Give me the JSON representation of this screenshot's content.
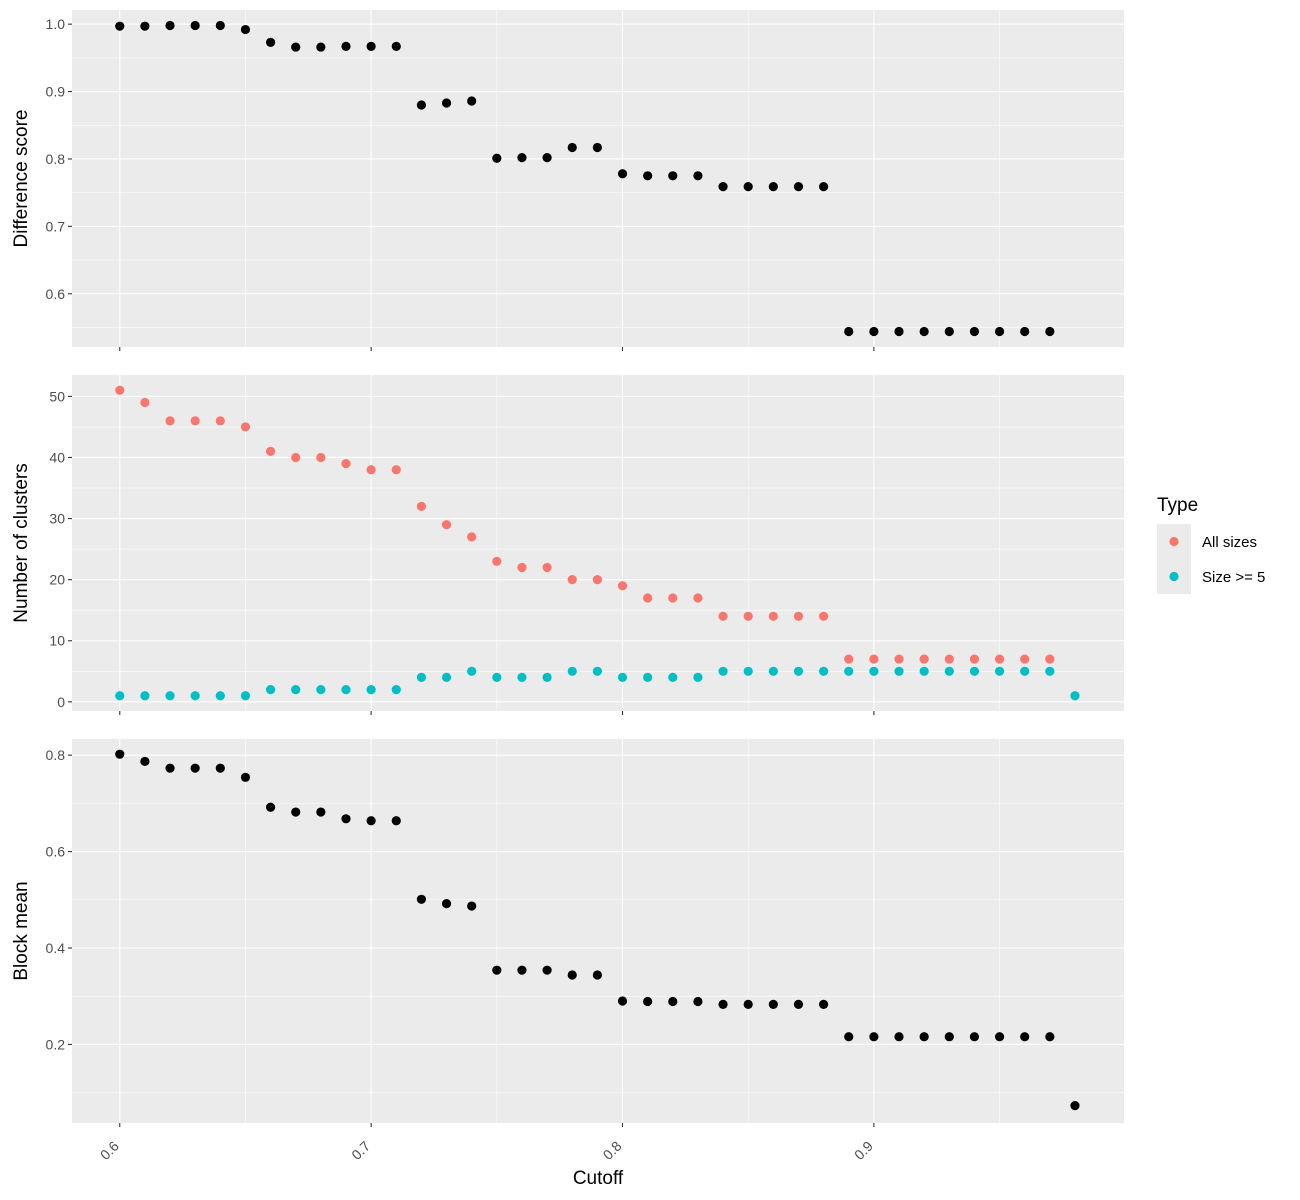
{
  "colors": {
    "panel_bg": "#EBEBEB",
    "grid": "#FFFFFF",
    "point_default": "#000000",
    "all_sizes": "#F8766D",
    "size_ge5": "#00BFC4",
    "tick_text": "#4D4D4D",
    "axis_title": "#000000"
  },
  "chart_data": [
    {
      "type": "scatter",
      "panel": "top",
      "ylabel": "Difference score",
      "xlabel": "",
      "xlim": [
        0.581,
        0.9995
      ],
      "ylim": [
        0.521,
        1.021
      ],
      "yticks": [
        0.6,
        0.7,
        0.8,
        0.9,
        1.0
      ],
      "ytick_labels": [
        "0.6",
        "0.7",
        "0.8",
        "0.9",
        "1.0"
      ],
      "xticks": [
        0.6,
        0.7,
        0.8,
        0.9
      ],
      "show_x_tick_labels": false,
      "grid": true,
      "series": [
        {
          "color_key": "point_default",
          "x": [
            0.6,
            0.61,
            0.62,
            0.63,
            0.64,
            0.65,
            0.66,
            0.67,
            0.68,
            0.69,
            0.7,
            0.71,
            0.72,
            0.73,
            0.74,
            0.75,
            0.76,
            0.77,
            0.78,
            0.79,
            0.8,
            0.81,
            0.82,
            0.83,
            0.84,
            0.85,
            0.86,
            0.87,
            0.88,
            0.89,
            0.9,
            0.91,
            0.92,
            0.93,
            0.94,
            0.95,
            0.96,
            0.97
          ],
          "y": [
            0.997,
            0.997,
            0.998,
            0.998,
            0.998,
            0.992,
            0.973,
            0.966,
            0.966,
            0.967,
            0.967,
            0.967,
            0.88,
            0.883,
            0.886,
            0.801,
            0.802,
            0.802,
            0.817,
            0.817,
            0.778,
            0.775,
            0.775,
            0.775,
            0.759,
            0.759,
            0.759,
            0.759,
            0.759,
            0.544,
            0.544,
            0.544,
            0.544,
            0.544,
            0.544,
            0.544,
            0.544,
            0.544
          ]
        }
      ]
    },
    {
      "type": "scatter",
      "panel": "middle",
      "ylabel": "Number of clusters",
      "xlabel": "",
      "xlim": [
        0.581,
        0.9995
      ],
      "ylim": [
        -1.5,
        53.5
      ],
      "yticks": [
        0,
        10,
        20,
        30,
        40,
        50
      ],
      "ytick_labels": [
        "0",
        "10",
        "20",
        "30",
        "40",
        "50"
      ],
      "xticks": [
        0.6,
        0.7,
        0.8,
        0.9
      ],
      "show_x_tick_labels": false,
      "grid": true,
      "legend": {
        "title": "Type",
        "position": "right",
        "entries": [
          {
            "label": "All sizes",
            "color_key": "all_sizes"
          },
          {
            "label": "Size >= 5",
            "color_key": "size_ge5"
          }
        ]
      },
      "series": [
        {
          "name": "All sizes",
          "color_key": "all_sizes",
          "x": [
            0.6,
            0.61,
            0.62,
            0.63,
            0.64,
            0.65,
            0.66,
            0.67,
            0.68,
            0.69,
            0.7,
            0.71,
            0.72,
            0.73,
            0.74,
            0.75,
            0.76,
            0.77,
            0.78,
            0.79,
            0.8,
            0.81,
            0.82,
            0.83,
            0.84,
            0.85,
            0.86,
            0.87,
            0.88,
            0.89,
            0.9,
            0.91,
            0.92,
            0.93,
            0.94,
            0.95,
            0.96,
            0.97
          ],
          "y": [
            51,
            49,
            46,
            46,
            46,
            45,
            41,
            40,
            40,
            39,
            38,
            38,
            32,
            29,
            27,
            23,
            22,
            22,
            20,
            20,
            19,
            17,
            17,
            17,
            14,
            14,
            14,
            14,
            14,
            7,
            7,
            7,
            7,
            7,
            7,
            7,
            7,
            7
          ]
        },
        {
          "name": "Size >= 5",
          "color_key": "size_ge5",
          "x": [
            0.6,
            0.61,
            0.62,
            0.63,
            0.64,
            0.65,
            0.66,
            0.67,
            0.68,
            0.69,
            0.7,
            0.71,
            0.72,
            0.73,
            0.74,
            0.75,
            0.76,
            0.77,
            0.78,
            0.79,
            0.8,
            0.81,
            0.82,
            0.83,
            0.84,
            0.85,
            0.86,
            0.87,
            0.88,
            0.89,
            0.9,
            0.91,
            0.92,
            0.93,
            0.94,
            0.95,
            0.96,
            0.97,
            0.98
          ],
          "y": [
            1,
            1,
            1,
            1,
            1,
            1,
            2,
            2,
            2,
            2,
            2,
            2,
            4,
            4,
            5,
            4,
            4,
            4,
            5,
            5,
            4,
            4,
            4,
            4,
            5,
            5,
            5,
            5,
            5,
            5,
            5,
            5,
            5,
            5,
            5,
            5,
            5,
            5,
            1
          ]
        }
      ]
    },
    {
      "type": "scatter",
      "panel": "bottom",
      "ylabel": "Block mean",
      "xlabel": "Cutoff",
      "xlim": [
        0.581,
        0.9995
      ],
      "ylim": [
        0.037,
        0.8335
      ],
      "yticks": [
        0.2,
        0.4,
        0.6,
        0.8
      ],
      "ytick_labels": [
        "0.2",
        "0.4",
        "0.6",
        "0.8"
      ],
      "xticks": [
        0.6,
        0.7,
        0.8,
        0.9
      ],
      "xtick_labels": [
        "0.6",
        "0.7",
        "0.8",
        "0.9"
      ],
      "show_x_tick_labels": true,
      "grid": true,
      "series": [
        {
          "color_key": "point_default",
          "x": [
            0.6,
            0.61,
            0.62,
            0.63,
            0.64,
            0.65,
            0.66,
            0.67,
            0.68,
            0.69,
            0.7,
            0.71,
            0.72,
            0.73,
            0.74,
            0.75,
            0.76,
            0.77,
            0.78,
            0.79,
            0.8,
            0.81,
            0.82,
            0.83,
            0.84,
            0.85,
            0.86,
            0.87,
            0.88,
            0.89,
            0.9,
            0.91,
            0.92,
            0.93,
            0.94,
            0.95,
            0.96,
            0.97,
            0.98
          ],
          "y": [
            0.802,
            0.787,
            0.773,
            0.773,
            0.773,
            0.754,
            0.692,
            0.682,
            0.682,
            0.668,
            0.664,
            0.664,
            0.501,
            0.492,
            0.487,
            0.354,
            0.354,
            0.354,
            0.344,
            0.344,
            0.29,
            0.289,
            0.289,
            0.289,
            0.283,
            0.283,
            0.283,
            0.283,
            0.283,
            0.216,
            0.216,
            0.216,
            0.216,
            0.216,
            0.216,
            0.216,
            0.216,
            0.216,
            0.073
          ]
        }
      ]
    }
  ]
}
